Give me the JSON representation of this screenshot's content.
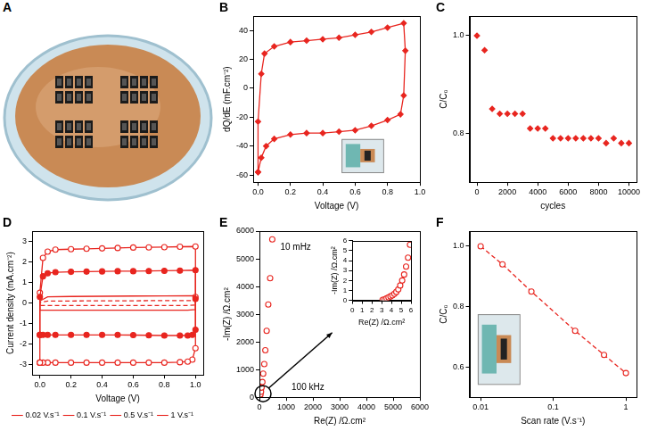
{
  "photo_panel": {
    "letter": "A"
  },
  "chart_data": [
    {
      "panel": "B",
      "type": "line",
      "x_label": "Voltage (V)",
      "y_label": "dQ/dE (mF.cm⁻²)",
      "xlim": [
        -0.03,
        1.0
      ],
      "xticks": [
        {
          "value": 0,
          "label": "0.0"
        },
        {
          "value": 0.2,
          "label": "0.2"
        },
        {
          "value": 0.4,
          "label": "0.4"
        },
        {
          "value": 0.6,
          "label": "0.6"
        },
        {
          "value": 0.8,
          "label": "0.8"
        },
        {
          "value": 1.0,
          "label": "1.0"
        }
      ],
      "ylim": [
        -65,
        50
      ],
      "yticks": [
        -60,
        -40,
        -20,
        0,
        20,
        40
      ],
      "grid": false,
      "series": [
        {
          "color": "#e8251f",
          "marker": "diamond",
          "line_style": "solid",
          "x": [
            0,
            0,
            0.02,
            0.04,
            0.1,
            0.2,
            0.3,
            0.4,
            0.5,
            0.6,
            0.7,
            0.8,
            0.9,
            0.91,
            0.9,
            0.88,
            0.8,
            0.7,
            0.6,
            0.5,
            0.4,
            0.3,
            0.2,
            0.1,
            0.05,
            0.02,
            0
          ],
          "values": [
            -58,
            -23,
            10,
            24,
            29,
            32,
            33,
            34,
            35,
            37,
            39,
            42,
            45,
            26,
            -5,
            -18,
            -22,
            -26,
            -29,
            -30,
            -31,
            -31,
            -32,
            -35,
            -40,
            -48,
            -58
          ]
        }
      ]
    },
    {
      "panel": "C",
      "type": "scatter",
      "x_label": "cycles",
      "y_label": "C/C₀",
      "xlim": [
        -500,
        10500
      ],
      "xticks": [
        0,
        2000,
        4000,
        6000,
        8000,
        10000
      ],
      "ylim": [
        0.7,
        1.04
      ],
      "yticks": [
        {
          "value": 0.8,
          "label": "0.8"
        },
        {
          "value": 1.0,
          "label": "1.0"
        }
      ],
      "grid": false,
      "series": [
        {
          "color": "#e8251f",
          "marker": "diamond",
          "line_style": "none",
          "x": [
            0,
            500,
            1000,
            1500,
            2000,
            2500,
            3000,
            3500,
            4000,
            4500,
            5000,
            5500,
            6000,
            6500,
            7000,
            7500,
            8000,
            8500,
            9000,
            9500,
            10000
          ],
          "values": [
            1.0,
            0.97,
            0.85,
            0.84,
            0.84,
            0.84,
            0.84,
            0.81,
            0.81,
            0.81,
            0.79,
            0.79,
            0.79,
            0.79,
            0.79,
            0.79,
            0.79,
            0.78,
            0.79,
            0.78,
            0.78
          ]
        }
      ]
    },
    {
      "panel": "D",
      "type": "line",
      "x_label": "Voltage (V)",
      "y_label": "Current density (mA.cm⁻²)",
      "xlim": [
        -0.05,
        1.05
      ],
      "xticks": [
        {
          "value": 0,
          "label": "0.0"
        },
        {
          "value": 0.2,
          "label": "0.2"
        },
        {
          "value": 0.4,
          "label": "0.4"
        },
        {
          "value": 0.6,
          "label": "0.6"
        },
        {
          "value": 0.8,
          "label": "0.8"
        },
        {
          "value": 1.0,
          "label": "1.0"
        }
      ],
      "ylim": [
        -3.5,
        3.5
      ],
      "yticks": [
        -3,
        -2,
        -1,
        0,
        1,
        2,
        3
      ],
      "grid": false,
      "legend": "bottom",
      "series": [
        {
          "name": "0.02 V.s⁻¹",
          "color": "#e8251f",
          "marker": "none",
          "line_style": "dashed",
          "x": [
            0,
            0,
            0.05,
            0.2,
            0.4,
            0.6,
            0.8,
            1.0,
            1.0,
            1.0,
            0.95,
            0.8,
            0.6,
            0.4,
            0.2,
            0.05,
            0
          ],
          "values": [
            -0.12,
            0.03,
            0.1,
            0.1,
            0.11,
            0.11,
            0.12,
            0.12,
            0.02,
            -0.1,
            -0.12,
            -0.12,
            -0.12,
            -0.12,
            -0.12,
            -0.12,
            -0.12
          ]
        },
        {
          "name": "0.1 V.s⁻¹",
          "color": "#e8251f",
          "marker": "none",
          "line_style": "solid",
          "x": [
            0,
            0,
            0.05,
            0.2,
            0.4,
            0.6,
            0.8,
            1.0,
            1.0,
            1.0,
            0.95,
            0.8,
            0.6,
            0.4,
            0.2,
            0.05,
            0
          ],
          "values": [
            -0.35,
            0.1,
            0.3,
            0.32,
            0.33,
            0.34,
            0.35,
            0.36,
            0.05,
            -0.32,
            -0.35,
            -0.35,
            -0.35,
            -0.35,
            -0.35,
            -0.35,
            -0.35
          ]
        },
        {
          "name": "0.5 V.s⁻¹",
          "color": "#e8251f",
          "marker": "circle",
          "line_style": "solid",
          "x": [
            0,
            0,
            0.02,
            0.05,
            0.1,
            0.2,
            0.3,
            0.4,
            0.5,
            0.6,
            0.7,
            0.8,
            0.9,
            1.0,
            1.0,
            1.0,
            0.98,
            0.95,
            0.9,
            0.8,
            0.7,
            0.6,
            0.5,
            0.4,
            0.3,
            0.2,
            0.1,
            0.05,
            0.02,
            0,
            0
          ],
          "values": [
            -1.55,
            0.3,
            1.3,
            1.45,
            1.5,
            1.52,
            1.53,
            1.54,
            1.55,
            1.55,
            1.56,
            1.57,
            1.58,
            1.6,
            0.2,
            -1.3,
            -1.55,
            -1.58,
            -1.58,
            -1.58,
            -1.57,
            -1.56,
            -1.55,
            -1.55,
            -1.55,
            -1.55,
            -1.55,
            -1.55,
            -1.55,
            -1.55,
            -1.55
          ]
        },
        {
          "name": "1 V.s⁻¹",
          "color": "#e8251f",
          "marker": "open_circle",
          "line_style": "solid",
          "x": [
            0,
            0,
            0.02,
            0.05,
            0.1,
            0.2,
            0.3,
            0.4,
            0.5,
            0.6,
            0.7,
            0.8,
            0.9,
            1.0,
            1.0,
            1.0,
            0.98,
            0.95,
            0.9,
            0.8,
            0.7,
            0.6,
            0.5,
            0.4,
            0.3,
            0.2,
            0.1,
            0.05,
            0.02,
            0,
            0
          ],
          "values": [
            -2.9,
            0.5,
            2.2,
            2.5,
            2.6,
            2.62,
            2.64,
            2.66,
            2.68,
            2.7,
            2.71,
            2.72,
            2.74,
            2.75,
            0.3,
            -2.2,
            -2.75,
            -2.85,
            -2.88,
            -2.9,
            -2.9,
            -2.9,
            -2.9,
            -2.9,
            -2.9,
            -2.9,
            -2.9,
            -2.9,
            -2.9,
            -2.9,
            -2.9
          ]
        }
      ]
    },
    {
      "panel": "E",
      "type": "scatter",
      "x_label": "Re(Z) /Ω.cm²",
      "y_label": "-Im(Z) /Ω.cm²",
      "xlim": [
        0,
        6000
      ],
      "xticks": [
        0,
        1000,
        2000,
        3000,
        4000,
        5000,
        6000
      ],
      "ylim": [
        0,
        6000
      ],
      "yticks": [
        0,
        1000,
        2000,
        3000,
        4000,
        5000,
        6000
      ],
      "grid": false,
      "annotations": [
        "10 mHz",
        "100 kHz"
      ],
      "series": [
        {
          "color": "#e8251f",
          "marker": "open_circle",
          "line_style": "none",
          "x": [
            5,
            20,
            40,
            60,
            80,
            110,
            140,
            180,
            220,
            270,
            330,
            400,
            480
          ],
          "values": [
            5,
            30,
            100,
            200,
            350,
            550,
            850,
            1200,
            1700,
            2400,
            3350,
            4300,
            5700
          ]
        }
      ],
      "inset": {
        "type": "scatter",
        "x_label": "Re(Z) /Ω.cm²",
        "y_label": "-Im(Z) /Ω.cm²",
        "xlim": [
          0,
          6
        ],
        "xticks": [
          0,
          1,
          2,
          3,
          4,
          5,
          6
        ],
        "ylim": [
          0,
          6
        ],
        "yticks": [
          0,
          1,
          2,
          3,
          4,
          5,
          6
        ],
        "grid": false,
        "series": [
          {
            "color": "#e8251f",
            "marker": "open_circle",
            "line_style": "none",
            "x": [
              3.1,
              3.3,
              3.5,
              3.7,
              3.9,
              4.1,
              4.3,
              4.5,
              4.7,
              4.9,
              5.1,
              5.3,
              5.5,
              5.7,
              5.9
            ],
            "values": [
              0.05,
              0.1,
              0.2,
              0.3,
              0.4,
              0.5,
              0.65,
              0.85,
              1.1,
              1.5,
              2.0,
              2.6,
              3.4,
              4.3,
              5.6
            ]
          }
        ]
      }
    },
    {
      "panel": "F",
      "type": "line",
      "x_label": "Scan rate (V.s⁻¹)",
      "y_label": "C/C₀",
      "log": "x",
      "xlim": [
        0.007,
        1.4
      ],
      "xticks": [
        0.01,
        0.1,
        1
      ],
      "ylim": [
        0.5,
        1.05
      ],
      "yticks": [
        {
          "value": 0.6,
          "label": "0.6"
        },
        {
          "value": 0.8,
          "label": "0.8"
        },
        {
          "value": 1.0,
          "label": "1.0"
        }
      ],
      "grid": false,
      "series": [
        {
          "color": "#e8251f",
          "marker": "open_circle",
          "line_style": "dashed",
          "x": [
            0.01,
            0.02,
            0.05,
            0.2,
            0.5,
            1
          ],
          "values": [
            1.0,
            0.94,
            0.85,
            0.72,
            0.64,
            0.58
          ]
        }
      ]
    }
  ]
}
